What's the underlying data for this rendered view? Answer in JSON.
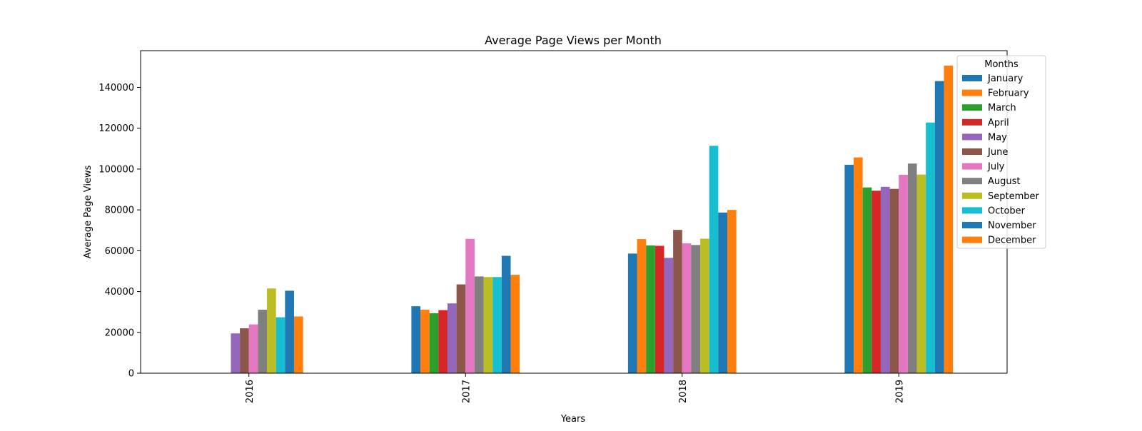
{
  "chart_data": {
    "type": "bar",
    "title": "Average Page Views per Month",
    "xlabel": "Years",
    "ylabel": "Average Page Views",
    "categories": [
      "2016",
      "2017",
      "2018",
      "2019"
    ],
    "ylim": [
      0,
      158000
    ],
    "yticks": [
      0,
      20000,
      40000,
      60000,
      80000,
      100000,
      120000,
      140000
    ],
    "grid": false,
    "legend": {
      "title": "Months",
      "placement": "top-right"
    },
    "series": [
      {
        "name": "January",
        "color": "#1f77b4",
        "values": [
          null,
          32800,
          58600,
          102100
        ]
      },
      {
        "name": "February",
        "color": "#ff7f0e",
        "values": [
          null,
          31100,
          65700,
          105700
        ]
      },
      {
        "name": "March",
        "color": "#2ca02c",
        "values": [
          null,
          29400,
          62600,
          91000
        ]
      },
      {
        "name": "April",
        "color": "#d62728",
        "values": [
          null,
          30900,
          62400,
          89400
        ]
      },
      {
        "name": "May",
        "color": "#9467bd",
        "values": [
          19500,
          34200,
          56500,
          91300
        ]
      },
      {
        "name": "June",
        "color": "#8c564b",
        "values": [
          22000,
          43500,
          70200,
          90300
        ]
      },
      {
        "name": "July",
        "color": "#e377c2",
        "values": [
          23900,
          65800,
          63600,
          97200
        ]
      },
      {
        "name": "August",
        "color": "#7f7f7f",
        "values": [
          31100,
          47400,
          62800,
          102700
        ]
      },
      {
        "name": "September",
        "color": "#bcbd22",
        "values": [
          41500,
          47100,
          65900,
          97300
        ]
      },
      {
        "name": "October",
        "color": "#17becf",
        "values": [
          27400,
          47100,
          111400,
          122800
        ]
      },
      {
        "name": "November",
        "color": "#1f77b4",
        "values": [
          40400,
          57500,
          78700,
          143100
        ]
      },
      {
        "name": "December",
        "color": "#ff7f0e",
        "values": [
          27800,
          48200,
          80000,
          150700
        ]
      }
    ]
  }
}
